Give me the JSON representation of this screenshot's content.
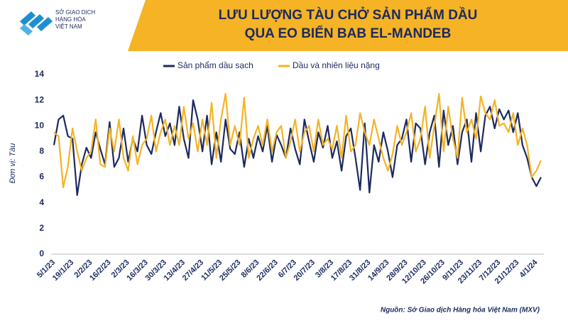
{
  "header": {
    "logo_line1": "SỞ GIAO DỊCH",
    "logo_line2": "HÀNG HÓA",
    "logo_line3": "VIỆT NAM"
  },
  "chart_data": {
    "type": "line",
    "title": "LƯU LƯỢNG TÀU CHỞ SẢN PHẨM DẦU",
    "subtitle": "QUA EO BIỂN BAB EL-MANDEB",
    "y_label": "Đơn vị: Tàu",
    "source": "Nguồn: Sở Giao dịch Hàng hóa Việt Nam (MXV)",
    "ylim": [
      0,
      14
    ],
    "yticks": [
      0,
      2,
      4,
      6,
      8,
      10,
      12,
      14
    ],
    "grid": false,
    "categories": [
      "5/1/23",
      null,
      null,
      null,
      "19/1/23",
      null,
      null,
      null,
      "2/2/23",
      null,
      null,
      null,
      "16/2/23",
      null,
      null,
      null,
      "2/3/23",
      null,
      null,
      null,
      "16/3/23",
      null,
      null,
      null,
      "30/3/23",
      null,
      null,
      null,
      "13/4/23",
      null,
      null,
      null,
      "27/4/23",
      null,
      null,
      null,
      "11/5/23",
      null,
      null,
      null,
      "25/5/23",
      null,
      null,
      null,
      "8/6/23",
      null,
      null,
      null,
      "22/6/23",
      null,
      null,
      null,
      "6/7/23",
      null,
      null,
      null,
      "20/7/23",
      null,
      null,
      null,
      "3/8/23",
      null,
      null,
      null,
      "17/8/23",
      null,
      null,
      null,
      "31/8/23",
      null,
      null,
      null,
      "14/9/23",
      null,
      null,
      null,
      "28/9/23",
      null,
      null,
      null,
      "12/10/23",
      null,
      null,
      null,
      "26/10/23",
      null,
      null,
      null,
      "9/11/23",
      null,
      null,
      null,
      "23/11/23",
      null,
      null,
      null,
      "7/12/23",
      null,
      null,
      null,
      "21/12/23",
      null,
      null,
      null,
      "4/1/24",
      null
    ],
    "series": [
      {
        "name": "Sản phẩm dầu sạch",
        "color": "#1c2a5e",
        "values": [
          8.5,
          10.5,
          10.8,
          9.2,
          9.0,
          4.6,
          7.0,
          8.3,
          7.5,
          9.5,
          8.2,
          7.0,
          10.3,
          6.8,
          7.5,
          9.8,
          7.2,
          9.0,
          8.0,
          10.8,
          8.5,
          7.8,
          9.5,
          11.0,
          9.2,
          10.2,
          8.5,
          11.5,
          9.0,
          7.5,
          12.0,
          10.5,
          8.0,
          10.8,
          7.0,
          9.5,
          7.2,
          10.5,
          8.2,
          7.8,
          9.5,
          6.8,
          9.0,
          7.5,
          9.2,
          8.0,
          10.0,
          7.2,
          9.3,
          8.5,
          7.5,
          9.8,
          8.2,
          7.0,
          10.5,
          8.8,
          7.2,
          9.5,
          8.3,
          10.0,
          7.5,
          8.8,
          6.5,
          9.2,
          9.8,
          7.5,
          5.0,
          10.2,
          4.8,
          8.5,
          7.2,
          9.5,
          8.0,
          6.0,
          8.5,
          9.0,
          10.5,
          7.2,
          10.2,
          9.8,
          7.0,
          9.5,
          10.8,
          6.8,
          11.2,
          8.5,
          10.0,
          7.0,
          9.5,
          10.5,
          7.2,
          11.0,
          8.0,
          10.8,
          11.5,
          9.8,
          11.3,
          10.5,
          11.2,
          9.5,
          11.0,
          8.5,
          7.5,
          6.0,
          5.3,
          6.0
        ]
      },
      {
        "name": "Dầu và nhiên liệu nặng",
        "color": "#f5b325",
        "values": [
          9.5,
          9.2,
          5.2,
          6.8,
          9.8,
          8.0,
          6.5,
          7.5,
          8.0,
          10.5,
          7.0,
          6.8,
          9.8,
          8.0,
          10.5,
          7.5,
          6.5,
          9.2,
          7.0,
          8.5,
          9.0,
          10.8,
          8.0,
          9.5,
          10.5,
          8.5,
          10.0,
          8.5,
          11.5,
          9.0,
          10.2,
          8.0,
          10.5,
          8.5,
          11.8,
          7.5,
          10.5,
          12.5,
          8.5,
          10.0,
          8.5,
          12.2,
          7.5,
          9.0,
          10.0,
          8.5,
          10.5,
          8.0,
          9.5,
          10.0,
          7.5,
          8.8,
          10.5,
          8.0,
          9.5,
          10.0,
          8.0,
          10.5,
          8.5,
          9.0,
          8.2,
          10.0,
          7.5,
          10.8,
          8.0,
          8.5,
          11.0,
          9.5,
          8.5,
          10.5,
          9.0,
          7.5,
          6.5,
          7.8,
          10.0,
          8.5,
          9.5,
          11.0,
          8.0,
          9.0,
          11.5,
          7.5,
          10.0,
          12.5,
          8.0,
          11.5,
          9.0,
          7.5,
          12.2,
          9.5,
          10.5,
          9.0,
          12.3,
          11.0,
          10.5,
          12.0,
          10.0,
          10.2,
          9.5,
          11.0,
          8.5,
          9.8,
          8.5,
          6.0,
          6.5,
          7.3
        ]
      }
    ]
  }
}
